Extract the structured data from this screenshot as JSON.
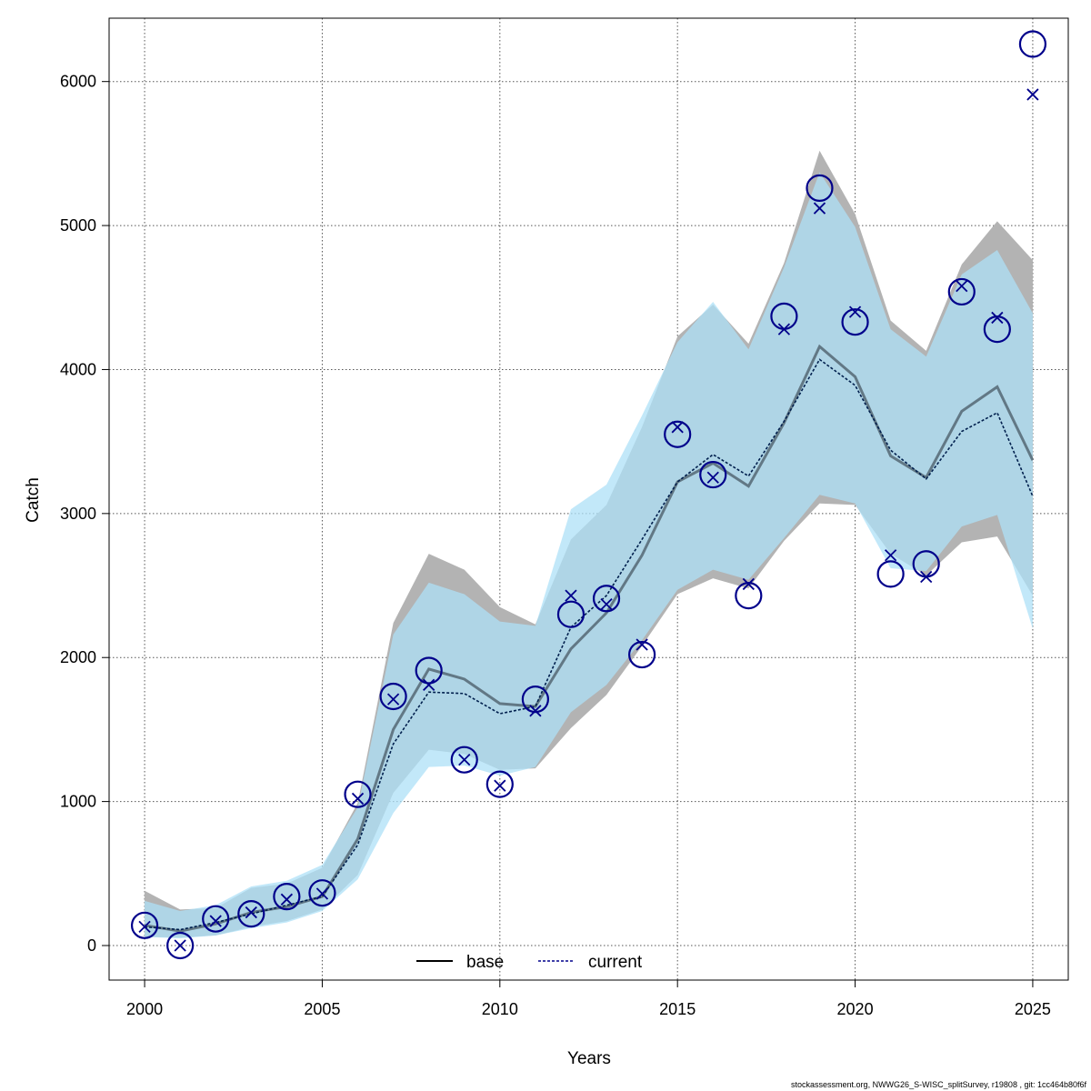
{
  "chart_data": {
    "type": "line",
    "xlabel": "Years",
    "ylabel": "Catch",
    "xlim": [
      1999,
      2026
    ],
    "ylim": [
      -240,
      6440
    ],
    "xticks": [
      2000,
      2005,
      2010,
      2015,
      2020,
      2025
    ],
    "yticks": [
      0,
      1000,
      2000,
      3000,
      4000,
      5000,
      6000
    ],
    "grid": true,
    "legend_position": "bottom-center",
    "legend": [
      {
        "label": "base",
        "style": "solid",
        "color": "#000000"
      },
      {
        "label": "current",
        "style": "dotted",
        "color": "#00008b"
      }
    ],
    "x": [
      2000,
      2001,
      2002,
      2003,
      2004,
      2005,
      2006,
      2007,
      2008,
      2009,
      2010,
      2011,
      2012,
      2013,
      2014,
      2015,
      2016,
      2017,
      2018,
      2019,
      2020,
      2021,
      2022,
      2023,
      2024,
      2025
    ],
    "series": [
      {
        "name": "base",
        "style": "solid",
        "color": "#2f3a44",
        "band_color": "#b3b3b3",
        "values": [
          140,
          100,
          150,
          230,
          270,
          340,
          740,
          1500,
          1920,
          1850,
          1680,
          1660,
          2060,
          2310,
          2710,
          3220,
          3350,
          3190,
          3630,
          4160,
          3950,
          3400,
          3250,
          3710,
          3880,
          3370
        ],
        "lower": [
          60,
          55,
          70,
          130,
          170,
          250,
          490,
          1060,
          1360,
          1330,
          1220,
          1230,
          1510,
          1740,
          2080,
          2440,
          2550,
          2480,
          2810,
          3070,
          3060,
          2720,
          2570,
          2800,
          2840,
          2430
        ],
        "upper": [
          380,
          250,
          260,
          400,
          430,
          540,
          990,
          2240,
          2720,
          2610,
          2350,
          2230,
          2820,
          3060,
          3600,
          4230,
          4450,
          4180,
          4740,
          5520,
          5080,
          4340,
          4130,
          4730,
          5030,
          4760
        ]
      },
      {
        "name": "current",
        "style": "dotted",
        "color": "#001f4d",
        "band_color": "#aee0f7",
        "values": [
          130,
          110,
          160,
          220,
          280,
          340,
          700,
          1400,
          1760,
          1750,
          1610,
          1660,
          2210,
          2430,
          2820,
          3220,
          3410,
          3260,
          3640,
          4070,
          3890,
          3440,
          3240,
          3570,
          3700,
          3120
        ],
        "lower": [
          60,
          50,
          70,
          120,
          160,
          240,
          460,
          920,
          1240,
          1250,
          1180,
          1240,
          1620,
          1810,
          2120,
          2470,
          2610,
          2540,
          2830,
          3130,
          3070,
          2620,
          2600,
          2910,
          2990,
          2200
        ],
        "upper": [
          310,
          240,
          280,
          410,
          450,
          560,
          960,
          2160,
          2520,
          2440,
          2250,
          2220,
          3030,
          3200,
          3680,
          4190,
          4470,
          4140,
          4710,
          5370,
          4990,
          4280,
          4090,
          4660,
          4830,
          4390
        ]
      }
    ],
    "observations": {
      "marker": "circle",
      "color": "#00008b",
      "x": [
        2000,
        2001,
        2002,
        2003,
        2004,
        2005,
        2006,
        2007,
        2008,
        2009,
        2010,
        2011,
        2012,
        2013,
        2014,
        2015,
        2016,
        2017,
        2018,
        2019,
        2020,
        2021,
        2022,
        2023,
        2024,
        2025
      ],
      "y": [
        140,
        0,
        185,
        220,
        340,
        365,
        1050,
        1730,
        1910,
        1290,
        1120,
        1710,
        2300,
        2410,
        2020,
        3550,
        3270,
        2430,
        4370,
        5260,
        4330,
        2580,
        2650,
        4540,
        4280,
        6260
      ]
    },
    "predictions": {
      "marker": "x",
      "color": "#00008b",
      "x": [
        2000,
        2001,
        2002,
        2003,
        2004,
        2005,
        2006,
        2007,
        2008,
        2009,
        2010,
        2011,
        2012,
        2013,
        2014,
        2015,
        2016,
        2017,
        2018,
        2019,
        2020,
        2021,
        2022,
        2023,
        2024,
        2025
      ],
      "y": [
        130,
        0,
        170,
        230,
        320,
        360,
        1020,
        1710,
        1810,
        1290,
        1110,
        1630,
        2430,
        2370,
        2090,
        3600,
        3250,
        2510,
        4280,
        5120,
        4400,
        2710,
        2560,
        4580,
        4360,
        5910
      ]
    }
  },
  "footer": "stockassessment.org, NWWG26_S-WISC_splitSurvey, r19808 , git: 1cc464b80f6f"
}
